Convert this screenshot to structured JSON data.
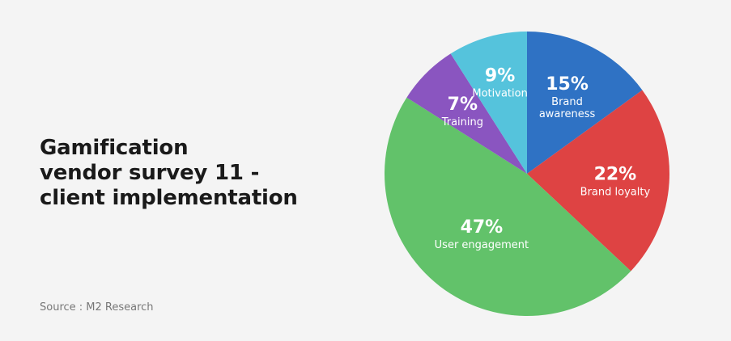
{
  "title_lines": [
    "Gamification",
    "vendor survey 11 -",
    "client implementation"
  ],
  "source": "Source : M2 Research",
  "chart_data": {
    "type": "pie",
    "slices": [
      {
        "label_lines": [
          "Brand",
          "awareness"
        ],
        "value": 15,
        "value_label": "15%",
        "color": "#2f72c4"
      },
      {
        "label_lines": [
          "Brand loyalty"
        ],
        "value": 22,
        "value_label": "22%",
        "color": "#de4343"
      },
      {
        "label_lines": [
          "User engagement"
        ],
        "value": 47,
        "value_label": "47%",
        "color": "#62c26a"
      },
      {
        "label_lines": [
          "Training"
        ],
        "value": 7,
        "value_label": "7%",
        "color": "#8a55c0"
      },
      {
        "label_lines": [
          "Motivation"
        ],
        "value": 9,
        "value_label": "9%",
        "color": "#55c3dc"
      }
    ],
    "start_angle_deg": 0,
    "direction": "clockwise"
  }
}
